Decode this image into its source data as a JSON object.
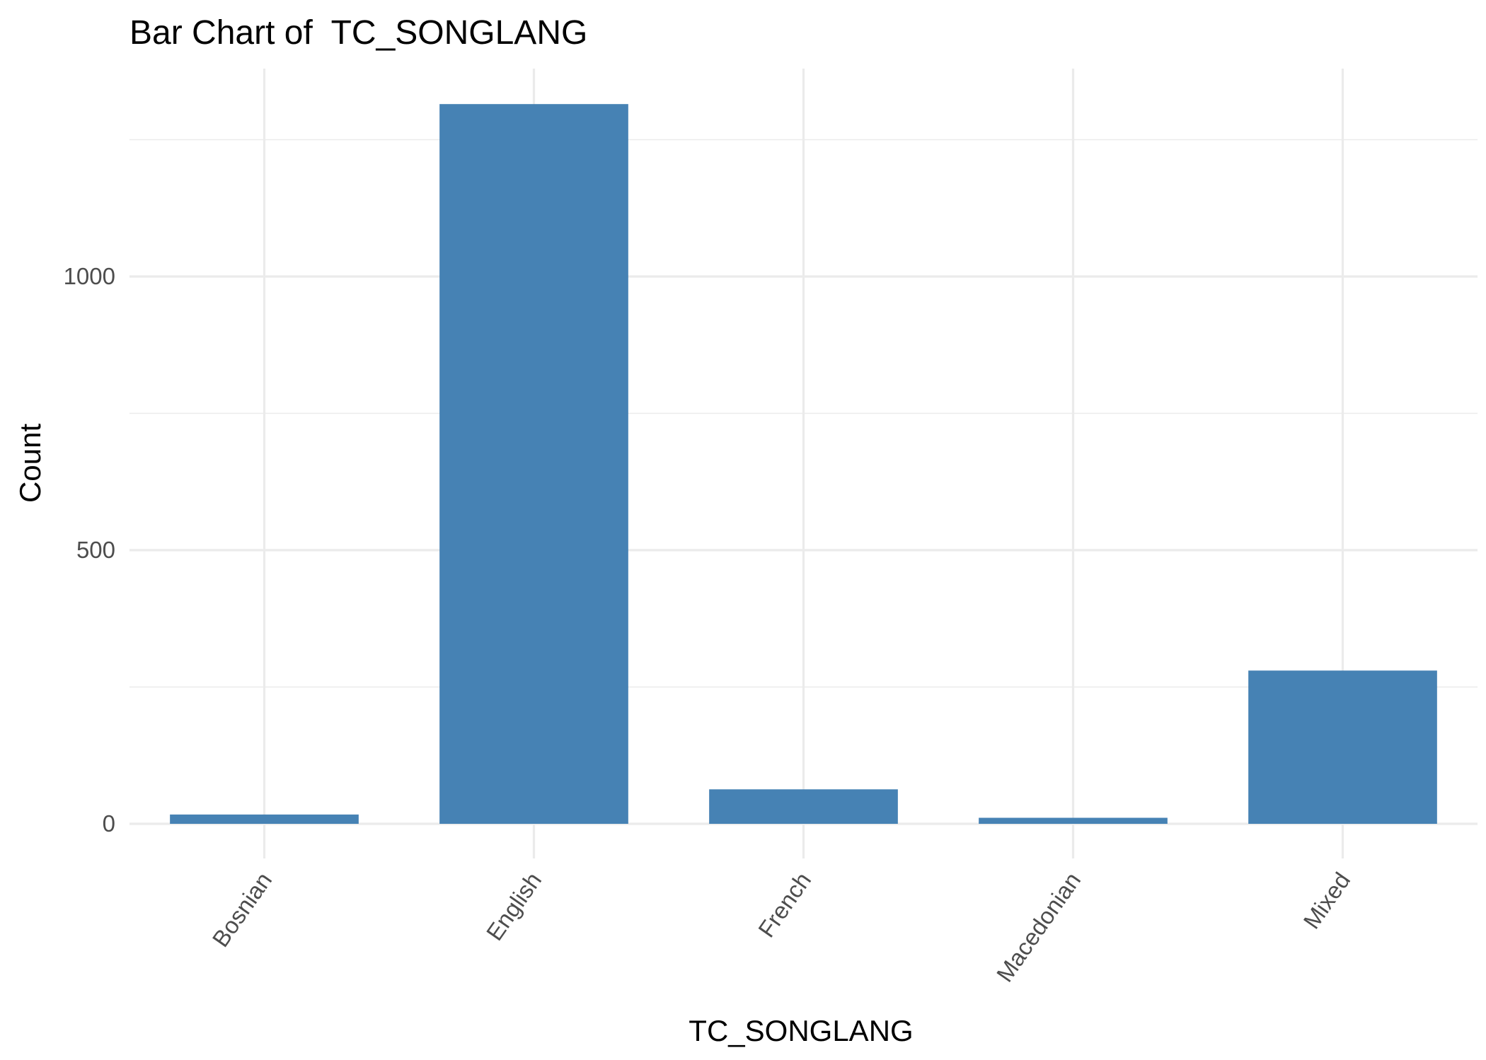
{
  "chart_data": {
    "type": "bar",
    "title": "Bar Chart of  TC_SONGLANG",
    "xlabel": "TC_SONGLANG",
    "ylabel": "Count",
    "categories": [
      "Bosnian",
      "English",
      "French",
      "Macedonian",
      "Mixed"
    ],
    "values": [
      17,
      1315,
      63,
      11,
      280
    ],
    "ylim": [
      -55,
      1380
    ],
    "yticks": [
      0,
      500,
      1000
    ],
    "yticks_minor": [
      250,
      750,
      1250
    ],
    "grid": true,
    "legend": "none",
    "bar_color": "#4682B4"
  }
}
